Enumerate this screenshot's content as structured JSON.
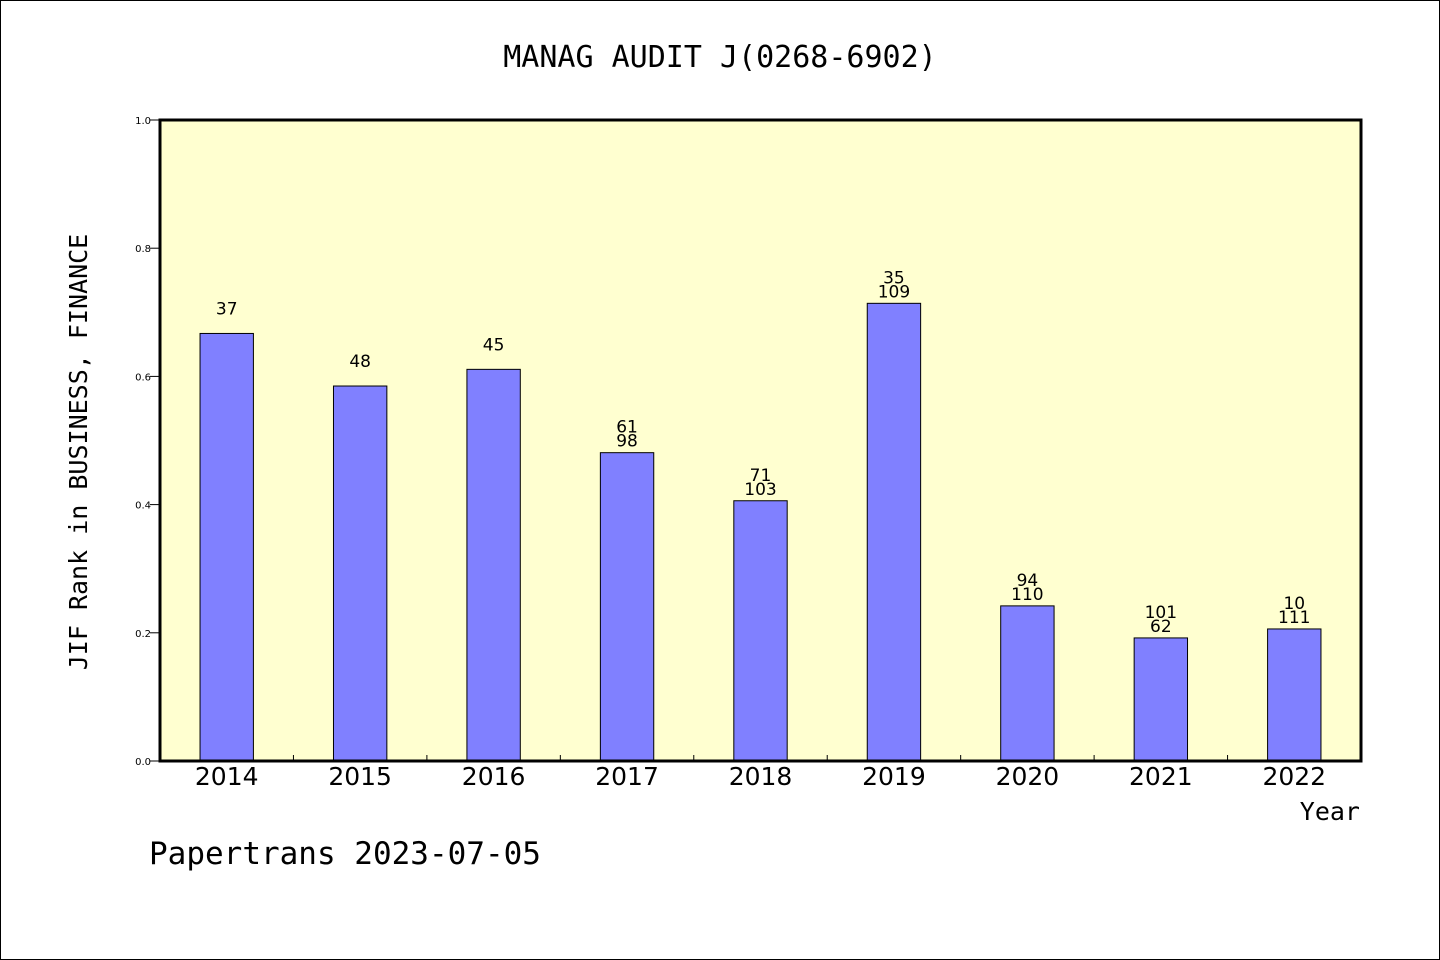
{
  "chart_data": {
    "type": "bar",
    "title": "MANAG AUDIT J(0268-6902)",
    "xlabel": "Year",
    "ylabel": "JIF Rank in BUSINESS, FINANCE",
    "ylim": [
      0,
      1.0
    ],
    "yticks": [
      "0.0",
      "0.2",
      "0.4",
      "0.6",
      "0.8",
      "1.0"
    ],
    "categories": [
      "2014",
      "2015",
      "2016",
      "2017",
      "2018",
      "2019",
      "2020",
      "2021",
      "2022"
    ],
    "values": [
      0.667,
      0.585,
      0.611,
      0.481,
      0.406,
      0.714,
      0.242,
      0.192,
      0.206
    ],
    "labels": [
      [
        "37"
      ],
      [
        "48"
      ],
      [
        "45"
      ],
      [
        "61",
        "98"
      ],
      [
        "71",
        "103"
      ],
      [
        "35",
        "109"
      ],
      [
        "94",
        "110"
      ],
      [
        "101",
        "62"
      ],
      [
        "10",
        "111"
      ]
    ],
    "grid": false,
    "colors": {
      "bar": "#8080ff",
      "plot_background": "#ffffd0"
    }
  },
  "footer": "Papertrans 2023-07-05"
}
